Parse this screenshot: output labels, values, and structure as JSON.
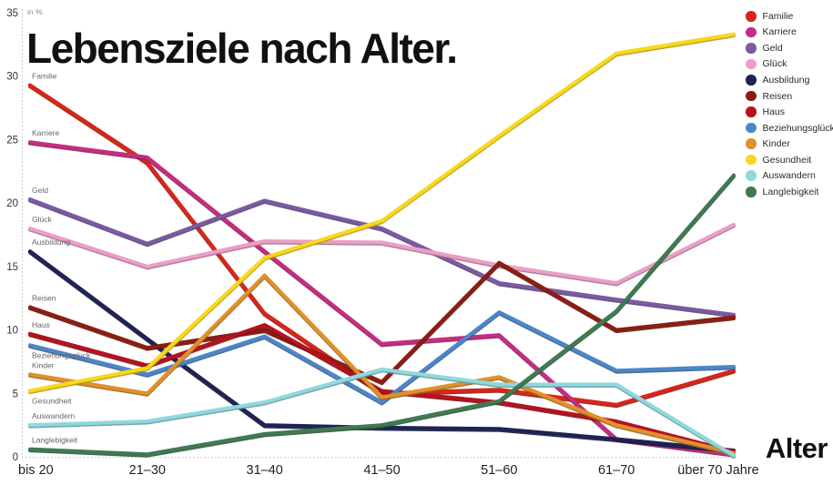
{
  "title": "Lebensziele nach Alter.",
  "y_axis_unit_label": "in %",
  "x_axis_title": "Alter",
  "chart_data": {
    "type": "line",
    "title": "Lebensziele nach Alter.",
    "xlabel": "Alter",
    "ylabel": "in %",
    "ylim": [
      0,
      35
    ],
    "y_ticks": [
      35,
      30,
      25,
      20,
      15,
      10,
      5,
      0
    ],
    "grid": false,
    "legend_position": "top-right",
    "categories": [
      "bis 20",
      "21–30",
      "31–40",
      "41–50",
      "51–60",
      "61–70",
      "über 70 Jahre"
    ],
    "series": [
      {
        "name": "Familie",
        "color": "#d6261b",
        "values": [
          29.3,
          23.2,
          11.3,
          5.0,
          5.3,
          4.1,
          6.8
        ],
        "label_below": false
      },
      {
        "name": "Karriere",
        "color": "#c52d80",
        "values": [
          24.8,
          23.6,
          16.2,
          8.9,
          9.6,
          1.4,
          0.2
        ],
        "label_below": false
      },
      {
        "name": "Geld",
        "color": "#7b5aa2",
        "values": [
          20.3,
          16.8,
          20.2,
          18.0,
          13.7,
          12.4,
          11.2
        ],
        "label_below": false
      },
      {
        "name": "Glück",
        "color": "#eb9fc6",
        "values": [
          18.0,
          15.0,
          17.0,
          16.9,
          15.1,
          13.7,
          18.3
        ],
        "label_below": false
      },
      {
        "name": "Ausbildung",
        "color": "#1e2255",
        "values": [
          16.2,
          9.3,
          2.5,
          2.3,
          2.2,
          1.4,
          0.5
        ],
        "label_below": false
      },
      {
        "name": "Reisen",
        "color": "#8c1d12",
        "values": [
          11.8,
          8.6,
          10.0,
          5.9,
          15.3,
          10.0,
          11.0
        ],
        "label_below": false
      },
      {
        "name": "Haus",
        "color": "#b5121f",
        "values": [
          9.7,
          7.2,
          10.4,
          5.2,
          4.3,
          2.8,
          0.4
        ],
        "label_below": false
      },
      {
        "name": "Beziehungsglück",
        "color": "#4d86c8",
        "values": [
          8.8,
          6.5,
          9.5,
          4.3,
          11.4,
          6.8,
          7.1
        ],
        "label_below": true
      },
      {
        "name": "Kinder",
        "color": "#e0912b",
        "values": [
          6.5,
          5.0,
          14.3,
          4.7,
          6.3,
          2.5,
          0.3
        ],
        "label_below": false
      },
      {
        "name": "Gesundheit",
        "color": "#f8d81c",
        "values": [
          5.2,
          7.0,
          15.7,
          18.6,
          25.3,
          31.8,
          33.3
        ],
        "label_below": true
      },
      {
        "name": "Auswandern",
        "color": "#8fd9de",
        "values": [
          2.5,
          2.8,
          4.3,
          6.9,
          5.7,
          5.7,
          0.1
        ],
        "label_below": false
      },
      {
        "name": "Langlebigkeit",
        "color": "#3f7a52",
        "values": [
          0.6,
          0.2,
          1.8,
          2.5,
          4.4,
          11.5,
          22.2
        ],
        "label_below": false
      }
    ]
  }
}
